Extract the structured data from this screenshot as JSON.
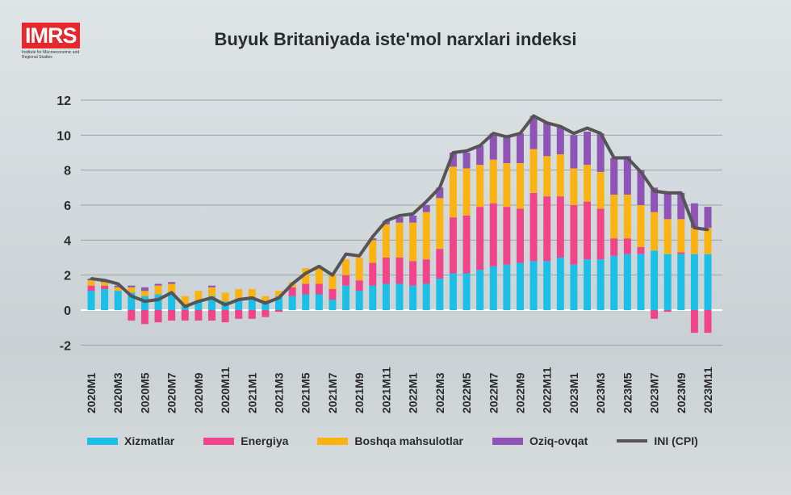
{
  "logo": {
    "text": "IMRS",
    "subtitle": "Institute for Macroeconomic and Regional Studies"
  },
  "chart_data": {
    "type": "bar",
    "title": "Buyuk Britaniyada iste'mol narxlari indeksi",
    "ylim": [
      -2,
      12
    ],
    "yticks": [
      -2,
      0,
      2,
      4,
      6,
      8,
      10,
      12
    ],
    "categories": [
      "2020M1",
      "2020M2",
      "2020M3",
      "2020M4",
      "2020M5",
      "2020M6",
      "2020M7",
      "2020M8",
      "2020M9",
      "2020M10",
      "2020M11",
      "2020M12",
      "2021M1",
      "2021M2",
      "2021M3",
      "2021M4",
      "2021M5",
      "2021M6",
      "2021M7",
      "2021M8",
      "2021M9",
      "2021M10",
      "2021M11",
      "2021M12",
      "2022M1",
      "2022M2",
      "2022M3",
      "2022M4",
      "2022M5",
      "2022M6",
      "2022M7",
      "2022M8",
      "2022M9",
      "2022M10",
      "2022M11",
      "2022M12",
      "2023M1",
      "2023M2",
      "2023M3",
      "2023M4",
      "2023M5",
      "2023M6",
      "2023M7",
      "2023M8",
      "2023M9",
      "2023M10",
      "2023M11"
    ],
    "series": [
      {
        "name": "Xizmatlar",
        "color": "#1cc0e6",
        "values": [
          1.1,
          1.2,
          1.1,
          1.0,
          0.8,
          0.9,
          1.0,
          0.2,
          0.5,
          0.8,
          0.5,
          0.6,
          0.6,
          0.4,
          0.8,
          0.8,
          0.9,
          0.9,
          0.6,
          1.4,
          1.1,
          1.4,
          1.5,
          1.5,
          1.4,
          1.5,
          1.8,
          2.1,
          2.1,
          2.3,
          2.5,
          2.6,
          2.7,
          2.8,
          2.8,
          3.0,
          2.6,
          2.9,
          2.9,
          3.1,
          3.2,
          3.2,
          3.4,
          3.2,
          3.2,
          3.2,
          3.2
        ]
      },
      {
        "name": "Energiya",
        "color": "#f2448a",
        "values": [
          0.3,
          0.2,
          0,
          -0.6,
          -0.8,
          -0.7,
          -0.6,
          -0.6,
          -0.6,
          -0.6,
          -0.7,
          -0.5,
          -0.5,
          -0.4,
          -0.1,
          0.5,
          0.6,
          0.6,
          0.6,
          0.6,
          0.6,
          1.3,
          1.5,
          1.5,
          1.4,
          1.4,
          1.7,
          3.2,
          3.3,
          3.6,
          3.6,
          3.3,
          3.1,
          3.9,
          3.7,
          3.5,
          3.4,
          3.3,
          2.9,
          1.0,
          0.9,
          0.4,
          -0.5,
          -0.1,
          0.1,
          -1.3,
          -1.3
        ]
      },
      {
        "name": "Boshqa mahsulotlar",
        "color": "#fcb312",
        "values": [
          0.3,
          0.2,
          0.2,
          0.3,
          0.3,
          0.5,
          0.5,
          0.6,
          0.6,
          0.5,
          0.5,
          0.6,
          0.6,
          0.4,
          0.3,
          0.3,
          0.9,
          0.9,
          0.8,
          0.9,
          1.3,
          1.3,
          1.9,
          2.0,
          2.2,
          2.7,
          2.9,
          2.9,
          2.7,
          2.4,
          2.5,
          2.5,
          2.6,
          2.5,
          2.3,
          2.4,
          2.1,
          2.1,
          2.1,
          2.5,
          2.5,
          2.4,
          2.2,
          2.0,
          1.9,
          1.5,
          1.5
        ]
      },
      {
        "name": "Oziq-ovqat",
        "color": "#8e55b6",
        "values": [
          0.1,
          0.1,
          0.1,
          0.1,
          0.2,
          0.1,
          0.1,
          0,
          0,
          0.1,
          0,
          0,
          0,
          0,
          0,
          0,
          0,
          0,
          0,
          0,
          0,
          0.1,
          0.2,
          0.3,
          0.4,
          0.4,
          0.6,
          0.8,
          0.9,
          1.1,
          1.5,
          1.5,
          1.7,
          1.9,
          1.9,
          1.6,
          1.9,
          1.9,
          2.2,
          2.1,
          2.2,
          2.0,
          1.4,
          1.5,
          1.5,
          1.4,
          1.2
        ]
      }
    ],
    "line": {
      "name": "INI (CPI)",
      "color": "#555555",
      "values": [
        1.8,
        1.7,
        1.5,
        0.8,
        0.5,
        0.6,
        1.0,
        0.2,
        0.5,
        0.7,
        0.3,
        0.6,
        0.7,
        0.4,
        0.7,
        1.5,
        2.1,
        2.5,
        2.0,
        3.2,
        3.1,
        4.2,
        5.1,
        5.4,
        5.5,
        6.2,
        7.0,
        9.0,
        9.1,
        9.4,
        10.1,
        9.9,
        10.1,
        11.1,
        10.7,
        10.5,
        10.1,
        10.4,
        10.1,
        8.7,
        8.7,
        7.9,
        6.8,
        6.7,
        6.7,
        4.7,
        4.6
      ]
    },
    "legend_position": "bottom",
    "grid": true
  }
}
